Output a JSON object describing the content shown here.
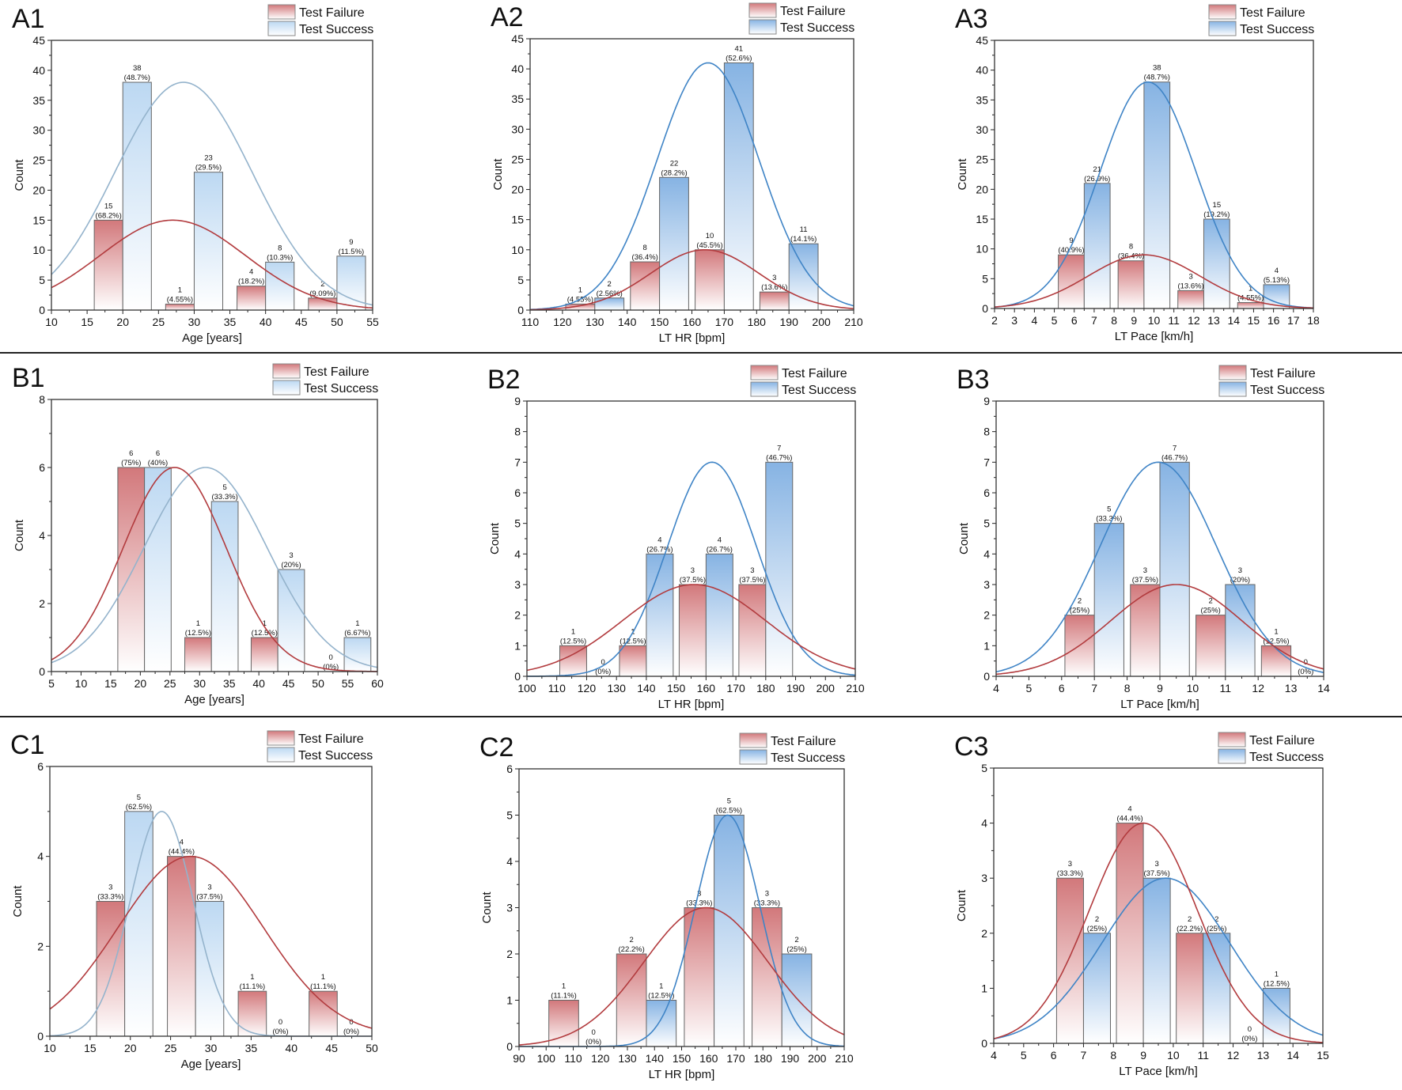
{
  "legend": {
    "failure": "Test Failure",
    "success": "Test Success"
  },
  "colors": {
    "failure_bar_top": "#d2787b",
    "failure_curve": "#b23b3e",
    "success_bar_light": "#bcd8f2",
    "success_bar_dark": "#86b3e3",
    "success_curve_light": "#94b3cc",
    "success_curve_dark": "#3f84c6",
    "bar_edge": "#666666"
  },
  "chart_data": [
    {
      "panel": "A1",
      "type": "bar",
      "xlabel": "Age [years]",
      "ylabel": "Count",
      "xlim": [
        10,
        55
      ],
      "xstep": 5,
      "ylim": [
        0,
        45
      ],
      "ystep": 5,
      "success_shade": "light",
      "failure": {
        "bars": [
          {
            "x": [
              16,
              20
            ],
            "value": 15,
            "label": "(68.2%)"
          },
          {
            "x": [
              26,
              30
            ],
            "value": 1,
            "label": "(4.55%)"
          },
          {
            "x": [
              36,
              40
            ],
            "value": 4,
            "label": "(18.2%)"
          },
          {
            "x": [
              46,
              50
            ],
            "value": 2,
            "label": "(9.09%)"
          }
        ],
        "fit": {
          "mean": 27,
          "sd": 10.2,
          "peak": 15
        }
      },
      "success": {
        "bars": [
          {
            "x": [
              20,
              24
            ],
            "value": 38,
            "label": "(48.7%)"
          },
          {
            "x": [
              30,
              34
            ],
            "value": 23,
            "label": "(29.5%)"
          },
          {
            "x": [
              40,
              44
            ],
            "value": 8,
            "label": "(10.3%)"
          },
          {
            "x": [
              50,
              54
            ],
            "value": 9,
            "label": "(11.5%)"
          }
        ],
        "fit": {
          "mean": 28.5,
          "sd": 9.6,
          "peak": 38
        }
      }
    },
    {
      "panel": "A2",
      "type": "bar",
      "xlabel": "LT HR [bpm]",
      "ylabel": "Count",
      "xlim": [
        110,
        210
      ],
      "xstep": 10,
      "ylim": [
        0,
        45
      ],
      "ystep": 5,
      "success_shade": "dark",
      "failure": {
        "bars": [
          {
            "x": [
              121,
              130
            ],
            "value": 1,
            "label": "(4.55%)"
          },
          {
            "x": [
              141,
              150
            ],
            "value": 8,
            "label": "(36.4%)"
          },
          {
            "x": [
              161,
              170
            ],
            "value": 10,
            "label": "(45.5%)"
          },
          {
            "x": [
              181,
              190
            ],
            "value": 3,
            "label": "(13.6%)"
          }
        ],
        "fit": {
          "mean": 164,
          "sd": 16.8,
          "peak": 10
        }
      },
      "success": {
        "bars": [
          {
            "x": [
              130,
              139
            ],
            "value": 2,
            "label": "(2.56%)"
          },
          {
            "x": [
              150,
              159
            ],
            "value": 22,
            "label": "(28.2%)"
          },
          {
            "x": [
              170,
              179
            ],
            "value": 41,
            "label": "(52.6%)"
          },
          {
            "x": [
              190,
              199
            ],
            "value": 11,
            "label": "(14.1%)"
          }
        ],
        "fit": {
          "mean": 165,
          "sd": 15.8,
          "peak": 41
        }
      }
    },
    {
      "panel": "A3",
      "type": "bar",
      "xlabel": "LT Pace [km/h]",
      "ylabel": "Count",
      "xlim": [
        2,
        18
      ],
      "xstep": 1,
      "ylim": [
        0,
        45
      ],
      "ystep": 5,
      "success_shade": "dark",
      "failure": {
        "bars": [
          {
            "x": [
              5.2,
              6.5
            ],
            "value": 9,
            "label": "(40.9%)"
          },
          {
            "x": [
              8.2,
              9.5
            ],
            "value": 8,
            "label": "(36.4%)"
          },
          {
            "x": [
              11.2,
              12.5
            ],
            "value": 3,
            "label": "(13.6%)"
          },
          {
            "x": [
              14.2,
              15.5
            ],
            "value": 1,
            "label": "(4.55%)"
          }
        ],
        "fit": {
          "mean": 9.5,
          "sd": 2.8,
          "peak": 9
        }
      },
      "success": {
        "bars": [
          {
            "x": [
              6.5,
              7.8
            ],
            "value": 21,
            "label": "(26.9%)"
          },
          {
            "x": [
              9.5,
              10.8
            ],
            "value": 38,
            "label": "(48.7%)"
          },
          {
            "x": [
              12.5,
              13.8
            ],
            "value": 15,
            "label": "(19.2%)"
          },
          {
            "x": [
              15.5,
              16.8
            ],
            "value": 4,
            "label": "(5.13%)"
          }
        ],
        "fit": {
          "mean": 9.7,
          "sd": 2.4,
          "peak": 38
        }
      }
    },
    {
      "panel": "B1",
      "type": "bar",
      "xlabel": "Age [years]",
      "ylabel": "Count",
      "xlim": [
        5,
        60
      ],
      "xstep": 5,
      "ylim": [
        0,
        8
      ],
      "ystep": 2,
      "success_shade": "light",
      "failure": {
        "bars": [
          {
            "x": [
              16.2,
              20.7
            ],
            "value": 6,
            "label": "(75%)"
          },
          {
            "x": [
              27.5,
              32
            ],
            "value": 1,
            "label": "(12.5%)"
          },
          {
            "x": [
              38.7,
              43.2
            ],
            "value": 1,
            "label": "(12.5%)"
          },
          {
            "x": [
              49.9,
              54.4
            ],
            "value": 0,
            "label": "(0%)"
          }
        ],
        "fit": {
          "mean": 25.8,
          "sd": 8.7,
          "peak": 6
        }
      },
      "success": {
        "bars": [
          {
            "x": [
              20.7,
              25.2
            ],
            "value": 6,
            "label": "(40%)"
          },
          {
            "x": [
              32,
              36.5
            ],
            "value": 5,
            "label": "(33.3%)"
          },
          {
            "x": [
              43.2,
              47.7
            ],
            "value": 3,
            "label": "(20%)"
          },
          {
            "x": [
              54.4,
              58.9
            ],
            "value": 1,
            "label": "(6.67%)"
          }
        ],
        "fit": {
          "mean": 31,
          "sd": 10.4,
          "peak": 6
        }
      }
    },
    {
      "panel": "B2",
      "type": "bar",
      "xlabel": "LT HR [bpm]",
      "ylabel": "Count",
      "xlim": [
        100,
        210
      ],
      "xstep": 10,
      "ylim": [
        0,
        9
      ],
      "ystep": 1,
      "success_shade": "dark",
      "failure": {
        "bars": [
          {
            "x": [
              111,
              120
            ],
            "value": 1,
            "label": "(12.5%)"
          },
          {
            "x": [
              121,
              130
            ],
            "value": 0,
            "label": "(0%)"
          },
          {
            "x": [
              131,
              140
            ],
            "value": 1,
            "label": "(12.5%)"
          },
          {
            "x": [
              151,
              160
            ],
            "value": 3,
            "label": "(37.5%)"
          },
          {
            "x": [
              171,
              180
            ],
            "value": 3,
            "label": "(37.5%)"
          }
        ],
        "fit": {
          "mean": 156,
          "sd": 24,
          "peak": 3
        }
      },
      "success": {
        "bars": [
          {
            "x": [
              140,
              149
            ],
            "value": 4,
            "label": "(26.7%)"
          },
          {
            "x": [
              160,
              169
            ],
            "value": 4,
            "label": "(26.7%)"
          },
          {
            "x": [
              180,
              189
            ],
            "value": 7,
            "label": "(46.7%)"
          }
        ],
        "fit": {
          "mean": 162,
          "sd": 14.9,
          "peak": 7
        }
      }
    },
    {
      "panel": "B3",
      "type": "bar",
      "xlabel": "LT Pace [km/h]",
      "ylabel": "Count",
      "xlim": [
        4,
        14
      ],
      "xstep": 1,
      "ylim": [
        0,
        9
      ],
      "ystep": 1,
      "success_shade": "dark",
      "failure": {
        "bars": [
          {
            "x": [
              6.1,
              7
            ],
            "value": 2,
            "label": "(25%)"
          },
          {
            "x": [
              8.1,
              9
            ],
            "value": 3,
            "label": "(37.5%)"
          },
          {
            "x": [
              10.1,
              11
            ],
            "value": 2,
            "label": "(25%)"
          },
          {
            "x": [
              12.1,
              13
            ],
            "value": 1,
            "label": "(12.5%)"
          },
          {
            "x": [
              13,
              13.9
            ],
            "value": 0,
            "label": "(0%)"
          }
        ],
        "fit": {
          "mean": 9.5,
          "sd": 2.0,
          "peak": 3
        }
      },
      "success": {
        "bars": [
          {
            "x": [
              7,
              7.9
            ],
            "value": 5,
            "label": "(33.3%)"
          },
          {
            "x": [
              9,
              9.9
            ],
            "value": 7,
            "label": "(46.7%)"
          },
          {
            "x": [
              11,
              11.9
            ],
            "value": 3,
            "label": "(20%)"
          }
        ],
        "fit": {
          "mean": 8.95,
          "sd": 1.78,
          "peak": 7
        }
      }
    },
    {
      "panel": "C1",
      "type": "bar",
      "xlabel": "Age [years]",
      "ylabel": "Count",
      "xlim": [
        10,
        50
      ],
      "xstep": 5,
      "ylim": [
        0,
        6
      ],
      "ystep": 2,
      "success_shade": "light",
      "failure": {
        "bars": [
          {
            "x": [
              15.8,
              19.3
            ],
            "value": 3,
            "label": "(33.3%)"
          },
          {
            "x": [
              24.6,
              28.1
            ],
            "value": 4,
            "label": "(44.4%)"
          },
          {
            "x": [
              33.4,
              36.9
            ],
            "value": 1,
            "label": "(11.1%)"
          },
          {
            "x": [
              36.9,
              40.4
            ],
            "value": 0,
            "label": "(0%)"
          },
          {
            "x": [
              42.2,
              45.7
            ],
            "value": 1,
            "label": "(11.1%)"
          },
          {
            "x": [
              45.7,
              49.2
            ],
            "value": 0,
            "label": "(0%)"
          }
        ],
        "fit": {
          "mean": 27.5,
          "sd": 9,
          "peak": 4
        }
      },
      "success": {
        "bars": [
          {
            "x": [
              19.3,
              22.8
            ],
            "value": 5,
            "label": "(62.5%)"
          },
          {
            "x": [
              28.1,
              31.6
            ],
            "value": 3,
            "label": "(37.5%)"
          }
        ],
        "fit": {
          "mean": 23.9,
          "sd": 3.9,
          "peak": 5
        }
      }
    },
    {
      "panel": "C2",
      "type": "bar",
      "xlabel": "LT HR [bpm]",
      "ylabel": "Count",
      "xlim": [
        90,
        210
      ],
      "xstep": 10,
      "ylim": [
        0,
        6
      ],
      "ystep": 1,
      "success_shade": "dark",
      "failure": {
        "bars": [
          {
            "x": [
              101,
              112
            ],
            "value": 1,
            "label": "(11.1%)"
          },
          {
            "x": [
              112,
              123
            ],
            "value": 0,
            "label": "(0%)"
          },
          {
            "x": [
              126,
              137
            ],
            "value": 2,
            "label": "(22.2%)"
          },
          {
            "x": [
              151,
              162
            ],
            "value": 3,
            "label": "(33.3%)"
          },
          {
            "x": [
              176,
              187
            ],
            "value": 3,
            "label": "(33.3%)"
          }
        ],
        "fit": {
          "mean": 159,
          "sd": 23,
          "peak": 3
        }
      },
      "success": {
        "bars": [
          {
            "x": [
              137,
              148
            ],
            "value": 1,
            "label": "(12.5%)"
          },
          {
            "x": [
              162,
              173
            ],
            "value": 5,
            "label": "(62.5%)"
          },
          {
            "x": [
              187,
              198
            ],
            "value": 2,
            "label": "(25%)"
          }
        ],
        "fit": {
          "mean": 167,
          "sd": 11.9,
          "peak": 5
        }
      }
    },
    {
      "panel": "C3",
      "type": "bar",
      "xlabel": "LT Pace [km/h]",
      "ylabel": "Count",
      "xlim": [
        4,
        15
      ],
      "xstep": 1,
      "ylim": [
        0,
        5
      ],
      "ystep": 1,
      "success_shade": "dark",
      "failure": {
        "bars": [
          {
            "x": [
              6.1,
              7
            ],
            "value": 3,
            "label": "(33.3%)"
          },
          {
            "x": [
              8.1,
              9
            ],
            "value": 4,
            "label": "(44.4%)"
          },
          {
            "x": [
              10.1,
              11
            ],
            "value": 2,
            "label": "(22.2%)"
          },
          {
            "x": [
              12.1,
              13
            ],
            "value": 0,
            "label": "(0%)"
          }
        ],
        "fit": {
          "mean": 9.0,
          "sd": 1.8,
          "peak": 4
        }
      },
      "success": {
        "bars": [
          {
            "x": [
              7,
              7.9
            ],
            "value": 2,
            "label": "(25%)"
          },
          {
            "x": [
              9,
              9.9
            ],
            "value": 3,
            "label": "(37.5%)"
          },
          {
            "x": [
              11,
              11.9
            ],
            "value": 2,
            "label": "(25%)"
          },
          {
            "x": [
              13,
              13.9
            ],
            "value": 1,
            "label": "(12.5%)"
          }
        ],
        "fit": {
          "mean": 9.75,
          "sd": 2.14,
          "peak": 3
        }
      }
    }
  ]
}
